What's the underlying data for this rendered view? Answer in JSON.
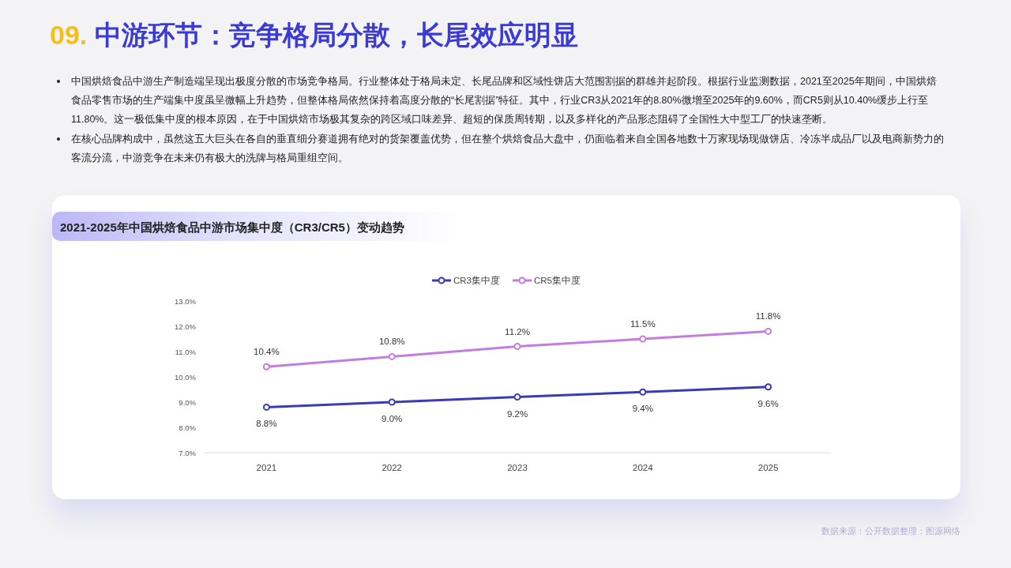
{
  "chart_data": {
    "type": "line",
    "title": "2021-2025年中国烘焙食品中游市场集中度（CR3/CR5）变动趋势",
    "categories": [
      "2021",
      "2022",
      "2023",
      "2024",
      "2025"
    ],
    "series": [
      {
        "name": "CR3集中度",
        "color": "#3b3bb5",
        "values": [
          8.8,
          9.0,
          9.2,
          9.4,
          9.6
        ],
        "value_labels": [
          "8.8%",
          "9.0%",
          "9.2%",
          "9.4%",
          "9.6%"
        ]
      },
      {
        "name": "CR5集中度",
        "color": "#c47ddf",
        "values": [
          10.4,
          10.8,
          11.2,
          11.5,
          11.8
        ],
        "value_labels": [
          "10.4%",
          "10.8%",
          "11.2%",
          "11.5%",
          "11.8%"
        ]
      }
    ],
    "ylim": [
      7,
      13
    ],
    "yticks": [
      {
        "value": 7,
        "label": "7.0%"
      },
      {
        "value": 8,
        "label": "8.0%"
      },
      {
        "value": 9,
        "label": "9.0%"
      },
      {
        "value": 10,
        "label": "10.0%"
      },
      {
        "value": 11,
        "label": "11.0%"
      },
      {
        "value": 12,
        "label": "12.0%"
      },
      {
        "value": 13,
        "label": "13.0%"
      }
    ],
    "marker": "circle",
    "line_style": "solid",
    "legend": "top",
    "grid": false,
    "annotations": [
      "09. 中游环节：竞争格局分散，长尾效应明显",
      "中国烘焙食品中游生产制造端呈现出极度分散的市场竞争格局。行业整体处于格局未定、长尾品牌和区域性饼店大范围割据的群雄并起阶段。根据行业监测数据，2021至2025年期间，中国烘焙食品零售市场的生产端集中度虽呈微幅上升趋势，但整体格局依然保持着高度分散的“长尾割据”特征。其中，行业CR3从2021年的8.80%微增至2025年的9.60%，而CR5则从10.40%缓步上行至11.80%。这一极低集中度的根本原因，在于中国烘焙市场极其复杂的跨区域口味差异、超短的保质周转期，以及多样化的产品形态阻碍了全国性大中型工厂的快速垄断。",
      "在核心品牌构成中，虽然这五大巨头在各自的垂直细分赛道拥有绝对的货架覆盖优势，但在整个烘焙食品大盘中，仍面临着来自全国各地数十万家现场现做饼店、冷冻半成品厂以及电商新势力的客流分流，中游竞争在未来仍有极大的洗牌与格局重组空间。",
      "数据来源：公开数据整理；图源网络"
    ]
  }
}
